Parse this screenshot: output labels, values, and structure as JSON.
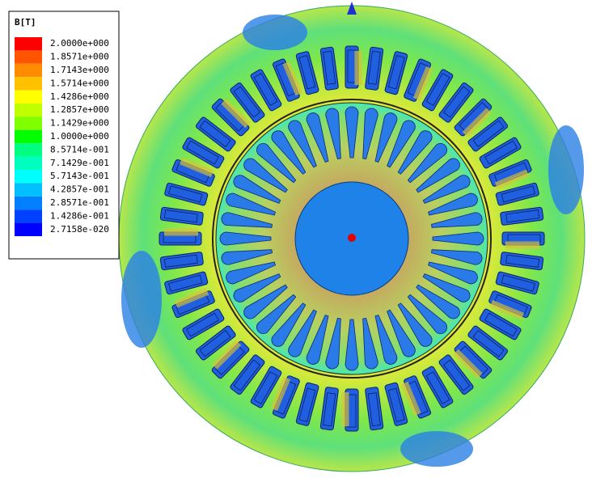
{
  "legend": {
    "title": "B[T]",
    "levels": [
      {
        "label": "2.0000e+000",
        "color": "#ff0000"
      },
      {
        "label": "1.8571e+000",
        "color": "#ff5500"
      },
      {
        "label": "1.7143e+000",
        "color": "#ff8c00"
      },
      {
        "label": "1.5714e+000",
        "color": "#ffc000"
      },
      {
        "label": "1.4286e+000",
        "color": "#ffff00"
      },
      {
        "label": "1.2857e+000",
        "color": "#bfff00"
      },
      {
        "label": "1.1429e+000",
        "color": "#80ff00"
      },
      {
        "label": "1.0000e+000",
        "color": "#00ff00"
      },
      {
        "label": "8.5714e-001",
        "color": "#00ff80"
      },
      {
        "label": "7.1429e-001",
        "color": "#00ffbf"
      },
      {
        "label": "5.7143e-001",
        "color": "#00ffff"
      },
      {
        "label": "4.2857e-001",
        "color": "#00c0ff"
      },
      {
        "label": "2.8571e-001",
        "color": "#0080ff"
      },
      {
        "label": "1.4286e-001",
        "color": "#0040ff"
      },
      {
        "label": "2.7158e-020",
        "color": "#0000ff"
      }
    ]
  }
}
